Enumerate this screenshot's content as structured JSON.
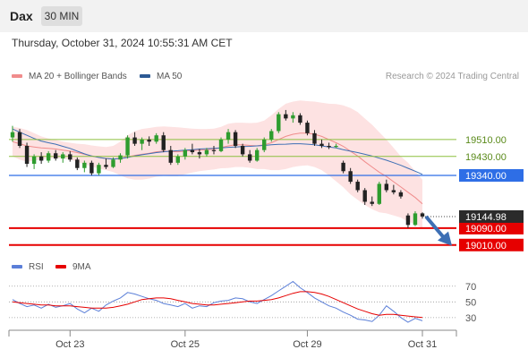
{
  "header": {
    "symbol": "Dax",
    "timeframe": "30 MIN"
  },
  "datetime": "Thursday, October 31, 2024 10:55:31 AM CET",
  "legend": {
    "bollinger": {
      "label": "MA 20 + Bollinger Bands",
      "color": "#f08c8c"
    },
    "ma50": {
      "label": "MA 50",
      "color": "#3d6fb4"
    },
    "rsi": {
      "label": "RSI",
      "color": "#5b7fd8"
    },
    "rsi_ma": {
      "label": "9MA",
      "color": "#e60000"
    }
  },
  "credit": "Research © 2024 Trading Central",
  "chart_data": [
    {
      "type": "candlestick",
      "title": "",
      "ylim": [
        18975,
        19760
      ],
      "x_tick_labels": [
        "Oct 23",
        "Oct 25",
        "Oct 29",
        "Oct 31"
      ],
      "x_tick_index": [
        8,
        24,
        41,
        57
      ],
      "candles_per_day_approx": 8,
      "levels": [
        {
          "label": "19510.00",
          "value": 19510,
          "kind": "resistance",
          "color": "#8cbf3f"
        },
        {
          "label": "19430.00",
          "value": 19430,
          "kind": "resistance",
          "color": "#8cbf3f"
        },
        {
          "label": "19340.00",
          "value": 19340,
          "kind": "pivot",
          "color": "#2e6ee6"
        },
        {
          "label": "19090.00",
          "value": 19090,
          "kind": "support",
          "color": "#e60000"
        },
        {
          "label": "19010.00",
          "value": 19010,
          "kind": "support",
          "color": "#e60000"
        }
      ],
      "last_price": {
        "label": "19144.98",
        "value": 19144.98
      },
      "forecast_arrow": {
        "from_value": 19145,
        "to_value": 19015,
        "direction": "down",
        "color": "#3d6fb4"
      },
      "candles": [
        {
          "o": 19520,
          "h": 19575,
          "l": 19500,
          "c": 19545
        },
        {
          "o": 19545,
          "h": 19560,
          "l": 19470,
          "c": 19480
        },
        {
          "o": 19480,
          "h": 19495,
          "l": 19380,
          "c": 19395
        },
        {
          "o": 19395,
          "h": 19440,
          "l": 19370,
          "c": 19430
        },
        {
          "o": 19430,
          "h": 19450,
          "l": 19395,
          "c": 19410
        },
        {
          "o": 19410,
          "h": 19455,
          "l": 19400,
          "c": 19445
        },
        {
          "o": 19445,
          "h": 19460,
          "l": 19410,
          "c": 19420
        },
        {
          "o": 19420,
          "h": 19450,
          "l": 19400,
          "c": 19440
        },
        {
          "o": 19440,
          "h": 19455,
          "l": 19405,
          "c": 19415
        },
        {
          "o": 19415,
          "h": 19425,
          "l": 19365,
          "c": 19375
        },
        {
          "o": 19375,
          "h": 19410,
          "l": 19355,
          "c": 19400
        },
        {
          "o": 19400,
          "h": 19410,
          "l": 19340,
          "c": 19350
        },
        {
          "o": 19350,
          "h": 19400,
          "l": 19340,
          "c": 19390
        },
        {
          "o": 19390,
          "h": 19420,
          "l": 19370,
          "c": 19380
        },
        {
          "o": 19380,
          "h": 19425,
          "l": 19375,
          "c": 19415
        },
        {
          "o": 19415,
          "h": 19445,
          "l": 19400,
          "c": 19435
        },
        {
          "o": 19435,
          "h": 19530,
          "l": 19420,
          "c": 19520
        },
        {
          "o": 19520,
          "h": 19545,
          "l": 19480,
          "c": 19490
        },
        {
          "o": 19490,
          "h": 19520,
          "l": 19460,
          "c": 19510
        },
        {
          "o": 19510,
          "h": 19525,
          "l": 19480,
          "c": 19500
        },
        {
          "o": 19500,
          "h": 19540,
          "l": 19490,
          "c": 19530
        },
        {
          "o": 19530,
          "h": 19545,
          "l": 19450,
          "c": 19460
        },
        {
          "o": 19460,
          "h": 19480,
          "l": 19390,
          "c": 19400
        },
        {
          "o": 19400,
          "h": 19440,
          "l": 19390,
          "c": 19430
        },
        {
          "o": 19430,
          "h": 19470,
          "l": 19415,
          "c": 19460
        },
        {
          "o": 19460,
          "h": 19490,
          "l": 19440,
          "c": 19450
        },
        {
          "o": 19450,
          "h": 19465,
          "l": 19420,
          "c": 19440
        },
        {
          "o": 19440,
          "h": 19470,
          "l": 19430,
          "c": 19460
        },
        {
          "o": 19460,
          "h": 19480,
          "l": 19440,
          "c": 19455
        },
        {
          "o": 19455,
          "h": 19520,
          "l": 19450,
          "c": 19510
        },
        {
          "o": 19510,
          "h": 19560,
          "l": 19490,
          "c": 19545
        },
        {
          "o": 19545,
          "h": 19555,
          "l": 19470,
          "c": 19480
        },
        {
          "o": 19480,
          "h": 19490,
          "l": 19430,
          "c": 19440
        },
        {
          "o": 19440,
          "h": 19460,
          "l": 19400,
          "c": 19410
        },
        {
          "o": 19410,
          "h": 19470,
          "l": 19405,
          "c": 19460
        },
        {
          "o": 19460,
          "h": 19520,
          "l": 19450,
          "c": 19510
        },
        {
          "o": 19510,
          "h": 19560,
          "l": 19500,
          "c": 19550
        },
        {
          "o": 19550,
          "h": 19640,
          "l": 19540,
          "c": 19630
        },
        {
          "o": 19630,
          "h": 19650,
          "l": 19600,
          "c": 19610
        },
        {
          "o": 19610,
          "h": 19640,
          "l": 19590,
          "c": 19625
        },
        {
          "o": 19625,
          "h": 19635,
          "l": 19580,
          "c": 19590
        },
        {
          "o": 19590,
          "h": 19600,
          "l": 19530,
          "c": 19540
        },
        {
          "o": 19540,
          "h": 19555,
          "l": 19480,
          "c": 19490
        },
        {
          "o": 19490,
          "h": 19510,
          "l": 19470,
          "c": 19480
        },
        {
          "o": 19480,
          "h": 19495,
          "l": 19465,
          "c": 19475
        },
        {
          "o": 19475,
          "h": 19490,
          "l": 19470,
          "c": 19480
        },
        {
          "o": 19400,
          "h": 19410,
          "l": 19350,
          "c": 19360
        },
        {
          "o": 19360,
          "h": 19375,
          "l": 19300,
          "c": 19310
        },
        {
          "o": 19310,
          "h": 19320,
          "l": 19260,
          "c": 19270
        },
        {
          "o": 19270,
          "h": 19280,
          "l": 19200,
          "c": 19215
        },
        {
          "o": 19215,
          "h": 19240,
          "l": 19195,
          "c": 19205
        },
        {
          "o": 19205,
          "h": 19310,
          "l": 19200,
          "c": 19300
        },
        {
          "o": 19300,
          "h": 19320,
          "l": 19260,
          "c": 19270
        },
        {
          "o": 19270,
          "h": 19295,
          "l": 19250,
          "c": 19260
        },
        {
          "o": 19260,
          "h": 19270,
          "l": 19230,
          "c": 19240
        },
        {
          "o": 19150,
          "h": 19160,
          "l": 19090,
          "c": 19105
        },
        {
          "o": 19105,
          "h": 19170,
          "l": 19100,
          "c": 19160
        },
        {
          "o": 19160,
          "h": 19165,
          "l": 19135,
          "c": 19145
        }
      ],
      "bollinger_mid": [
        19500,
        19490,
        19480,
        19475,
        19470,
        19468,
        19465,
        19460,
        19455,
        19448,
        19440,
        19432,
        19425,
        19420,
        19418,
        19420,
        19428,
        19435,
        19440,
        19445,
        19452,
        19455,
        19453,
        19452,
        19455,
        19458,
        19460,
        19462,
        19465,
        19472,
        19480,
        19485,
        19485,
        19482,
        19480,
        19485,
        19495,
        19510,
        19525,
        19535,
        19540,
        19540,
        19535,
        19525,
        19510,
        19495,
        19478,
        19455,
        19432,
        19405,
        19380,
        19355,
        19335,
        19310,
        19285,
        19260,
        19235,
        19205
      ],
      "bollinger_upper": [
        19570,
        19565,
        19555,
        19540,
        19525,
        19515,
        19508,
        19500,
        19495,
        19490,
        19488,
        19482,
        19478,
        19475,
        19480,
        19500,
        19530,
        19550,
        19560,
        19565,
        19570,
        19572,
        19570,
        19568,
        19565,
        19562,
        19560,
        19560,
        19562,
        19570,
        19585,
        19590,
        19590,
        19588,
        19590,
        19600,
        19625,
        19655,
        19680,
        19690,
        19695,
        19692,
        19690,
        19685,
        19680,
        19678,
        19672,
        19660,
        19640,
        19610,
        19580,
        19545,
        19510,
        19470,
        19430,
        19400,
        19360,
        19320
      ],
      "bollinger_lower": [
        19430,
        19415,
        19405,
        19410,
        19415,
        19420,
        19422,
        19420,
        19415,
        19405,
        19392,
        19382,
        19372,
        19365,
        19356,
        19340,
        19326,
        19320,
        19320,
        19325,
        19334,
        19338,
        19336,
        19336,
        19345,
        19354,
        19360,
        19364,
        19368,
        19374,
        19375,
        19380,
        19380,
        19376,
        19370,
        19370,
        19365,
        19365,
        19370,
        19380,
        19385,
        19388,
        19380,
        19365,
        19340,
        19312,
        19284,
        19250,
        19224,
        19200,
        19180,
        19165,
        19160,
        19150,
        19140,
        19120,
        19110,
        19090
      ],
      "ma50": [
        19560,
        19545,
        19530,
        19515,
        19503,
        19495,
        19488,
        19478,
        19468,
        19455,
        19442,
        19432,
        19425,
        19420,
        19418,
        19420,
        19425,
        19432,
        19438,
        19443,
        19448,
        19452,
        19455,
        19457,
        19460,
        19462,
        19465,
        19467,
        19468,
        19470,
        19473,
        19475,
        19477,
        19478,
        19480,
        19482,
        19485,
        19487,
        19488,
        19490,
        19490,
        19488,
        19485,
        19480,
        19475,
        19470,
        19462,
        19455,
        19448,
        19440,
        19432,
        19422,
        19412,
        19400,
        19388,
        19374,
        19360,
        19345
      ]
    },
    {
      "type": "line",
      "title": "",
      "ylim": [
        15,
        80
      ],
      "y_ticks": [
        70,
        50,
        30
      ],
      "series": [
        {
          "name": "RSI",
          "values": [
            53,
            48,
            44,
            46,
            42,
            47,
            43,
            45,
            48,
            41,
            36,
            42,
            38,
            46,
            51,
            55,
            62,
            60,
            57,
            54,
            52,
            48,
            46,
            44,
            48,
            42,
            45,
            44,
            49,
            51,
            52,
            55,
            54,
            50,
            48,
            53,
            58,
            64,
            70,
            76,
            68,
            62,
            55,
            50,
            45,
            42,
            37,
            33,
            28,
            27,
            25,
            33,
            45,
            38,
            30,
            24,
            29,
            26
          ]
        },
        {
          "name": "9MA",
          "values": [
            50,
            49,
            48,
            47,
            46,
            46,
            45,
            45,
            45,
            44,
            43,
            42,
            42,
            42,
            43,
            45,
            47,
            50,
            53,
            54,
            55,
            55,
            54,
            52,
            50,
            48,
            47,
            46,
            46,
            47,
            48,
            49,
            50,
            51,
            51,
            52,
            53,
            55,
            58,
            61,
            63,
            63,
            62,
            60,
            57,
            53,
            49,
            45,
            41,
            38,
            35,
            33,
            34,
            34,
            33,
            32,
            31,
            30
          ]
        }
      ]
    }
  ]
}
